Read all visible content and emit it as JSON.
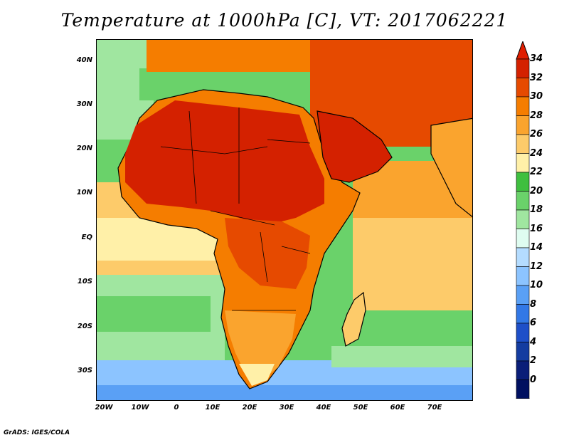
{
  "title": "Temperature at 1000hPa [C], VT: 2017062221",
  "credit": "GrADS: IGES/COLA",
  "y_axis": {
    "ticks": [
      "40N",
      "30N",
      "20N",
      "10N",
      "EQ",
      "10S",
      "20S",
      "30S"
    ]
  },
  "x_axis": {
    "ticks": [
      "20W",
      "10W",
      "0",
      "10E",
      "20E",
      "30E",
      "40E",
      "50E",
      "60E",
      "70E"
    ]
  },
  "colorbar": {
    "labels": [
      "34",
      "32",
      "30",
      "28",
      "26",
      "24",
      "22",
      "20",
      "18",
      "16",
      "14",
      "12",
      "10",
      "8",
      "6",
      "4",
      "2",
      "0"
    ],
    "colors": [
      "#d42100",
      "#e64a00",
      "#f57d00",
      "#faa42e",
      "#fdcb6a",
      "#fff0a8",
      "#3fbf3f",
      "#6ad26a",
      "#a0e6a0",
      "#dffcf0",
      "#b4dcff",
      "#8cc4ff",
      "#5aa0f5",
      "#3278e6",
      "#1e4fc8",
      "#143ca0",
      "#0a1e78",
      "#001060"
    ],
    "top_color": "#e01e00",
    "bottom_color": "#e0d8ff"
  },
  "map": {
    "lon_range": [
      -22,
      80
    ],
    "lat_range": [
      -37,
      45
    ],
    "palette": {
      "ocean_south": "#8cc4ff",
      "ocean_far_south": "#5aa0f5",
      "ocean_cool": "#a0e6a0",
      "ocean_mid": "#6ad26a",
      "ocean_warm": "#fdcb6a",
      "ocean_hot": "#faa42e",
      "land_hot": "#d42100",
      "land_warm": "#e64a00",
      "land_mid": "#f57d00",
      "land_mild": "#faa42e",
      "land_cool": "#fff0a8"
    }
  }
}
